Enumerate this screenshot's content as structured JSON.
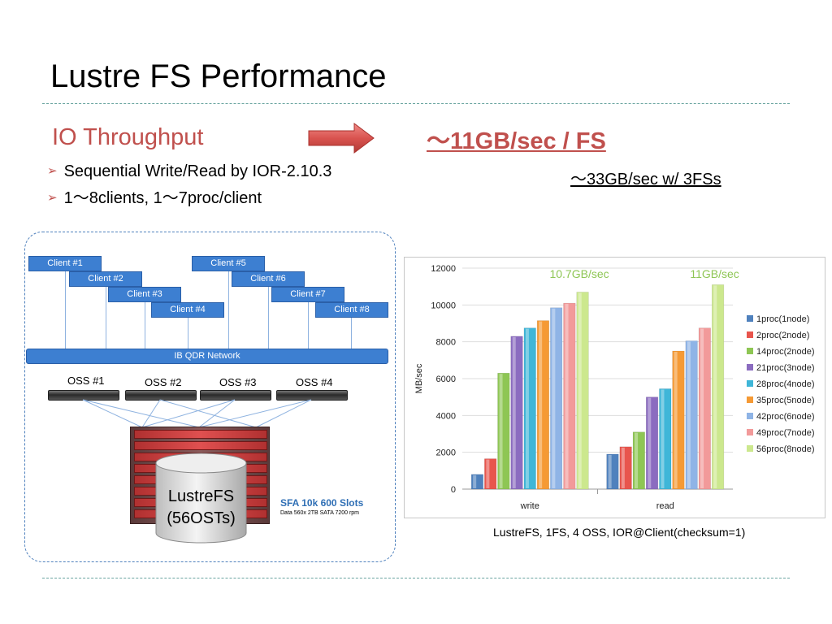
{
  "slide": {
    "title": "Lustre FS Performance",
    "subtitle": "IO Throughput",
    "bullets": [
      "Sequential Write/Read by IOR-2.10.3",
      "1～8clients, 1～7proc/client"
    ],
    "headline": "～11GB/sec / FS",
    "headline_sub": "～33GB/sec w/ 3FSs",
    "chart_caption": "LustreFS, 1FS, 4 OSS, IOR@Client(checksum=1)"
  },
  "diagram": {
    "clients": [
      "Client #1",
      "Client #2",
      "Client #3",
      "Client #4",
      "Client #5",
      "Client #6",
      "Client #7",
      "Client #8"
    ],
    "network": "IB QDR Network",
    "oss": [
      "OSS #1",
      "OSS #2",
      "OSS #3",
      "OSS #4"
    ],
    "storage_label_line1": "LustreFS",
    "storage_label_line2": "(56OSTs)",
    "sfa_title": "SFA 10k 600 Slots",
    "sfa_sub": "Data 560x 2TB SATA 7200 rpm"
  },
  "colors": {
    "accent": "#c0504d",
    "client": "#3d7fd1",
    "separator": "#6aa5a0"
  },
  "icons": {
    "arrow": "right-arrow-icon",
    "bullet": "arrowhead-bullet-icon"
  },
  "chart_data": {
    "type": "bar",
    "categories": [
      "write",
      "read"
    ],
    "ylabel": "MB/sec",
    "ylim": [
      0,
      12000
    ],
    "yticks": [
      0,
      2000,
      4000,
      6000,
      8000,
      10000,
      12000
    ],
    "grid": true,
    "legend_position": "right",
    "series": [
      {
        "name": "1proc(1node)",
        "color": "#4f81bd",
        "values": [
          800,
          1900
        ]
      },
      {
        "name": "2proc(2node)",
        "color": "#e8554d",
        "values": [
          1650,
          2300
        ]
      },
      {
        "name": "14proc(2node)",
        "color": "#8ec654",
        "values": [
          6300,
          3100
        ]
      },
      {
        "name": "21proc(3node)",
        "color": "#8b6cc0",
        "values": [
          8300,
          5000
        ]
      },
      {
        "name": "28proc(4node)",
        "color": "#3fb6d8",
        "values": [
          8750,
          5450
        ]
      },
      {
        "name": "35proc(5node)",
        "color": "#f59a35",
        "values": [
          9150,
          7500
        ]
      },
      {
        "name": "42proc(6node)",
        "color": "#8fb4e6",
        "values": [
          9850,
          8050
        ]
      },
      {
        "name": "49proc(7node)",
        "color": "#f29a9a",
        "values": [
          10100,
          8750
        ]
      },
      {
        "name": "56proc(8node)",
        "color": "#cce88e",
        "values": [
          10700,
          11100
        ]
      }
    ],
    "annotations": [
      "10.7GB/sec",
      "11GB/sec"
    ]
  }
}
